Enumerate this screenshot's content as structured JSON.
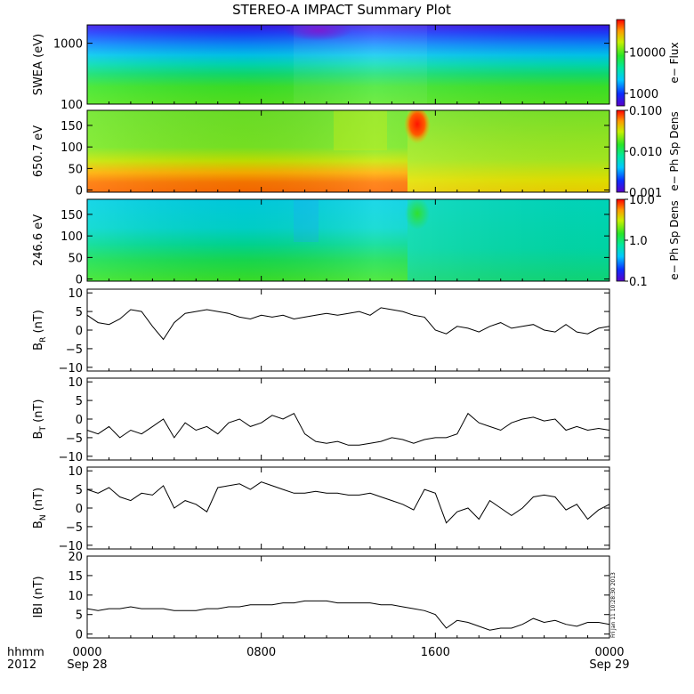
{
  "title": "STEREO-A IMPACT Summary Plot",
  "side_stamp": "Fri Jan 11 10:28:30 2013",
  "time_axis": {
    "corner_labels": [
      "hhmm",
      "2012"
    ],
    "ticks": [
      {
        "t": 0,
        "hhmm": "0000",
        "date": "Sep 28"
      },
      {
        "t": 8,
        "hhmm": "0800",
        "date": ""
      },
      {
        "t": 16,
        "hhmm": "1600",
        "date": ""
      },
      {
        "t": 24,
        "hhmm": "0000",
        "date": "Sep 29"
      }
    ]
  },
  "chart_data": [
    {
      "type": "heatmap",
      "ylabel": "SWEA (eV)",
      "y_scale": "log",
      "ylim": [
        100,
        2000
      ],
      "yticks": [
        {
          "v": 100,
          "label": "100"
        },
        {
          "v": 1000,
          "label": "1000"
        }
      ],
      "colorbar": {
        "label": "e− Flux",
        "scale": "log",
        "range": [
          500,
          60000
        ],
        "ticks": [
          {
            "v": 1000,
            "label": "1000"
          },
          {
            "v": 10000,
            "label": "10000"
          }
        ]
      }
    },
    {
      "type": "heatmap",
      "ylabel": "650.7 eV",
      "ylim": [
        -5,
        185
      ],
      "yticks": [
        {
          "v": 0,
          "label": "0"
        },
        {
          "v": 50,
          "label": "50"
        },
        {
          "v": 100,
          "label": "100"
        },
        {
          "v": 150,
          "label": "150"
        }
      ],
      "colorbar": {
        "label": "e− Ph Sp Dens",
        "scale": "log",
        "range": [
          0.001,
          0.1
        ],
        "ticks": [
          {
            "v": 0.001,
            "label": "0.001"
          },
          {
            "v": 0.01,
            "label": "0.010"
          },
          {
            "v": 0.1,
            "label": "0.100"
          }
        ]
      }
    },
    {
      "type": "heatmap",
      "ylabel": "246.6 eV",
      "ylim": [
        -5,
        185
      ],
      "yticks": [
        {
          "v": 0,
          "label": "0"
        },
        {
          "v": 50,
          "label": "50"
        },
        {
          "v": 100,
          "label": "100"
        },
        {
          "v": 150,
          "label": "150"
        }
      ],
      "colorbar": {
        "label": "e− Ph Sp Dens",
        "scale": "log",
        "range": [
          0.1,
          10
        ],
        "ticks": [
          {
            "v": 0.1,
            "label": "0.1"
          },
          {
            "v": 1,
            "label": "1.0"
          },
          {
            "v": 10,
            "label": "10.0"
          }
        ]
      }
    },
    {
      "type": "line",
      "name": "B_R",
      "ylabel": {
        "main": "B",
        "sub": "R",
        "unit": " (nT)"
      },
      "ylim": [
        -11,
        11
      ],
      "yticks": [
        {
          "v": -10,
          "label": "−10"
        },
        {
          "v": -5,
          "label": "−5"
        },
        {
          "v": 0,
          "label": "0"
        },
        {
          "v": 5,
          "label": "5"
        },
        {
          "v": 10,
          "label": "10"
        }
      ],
      "x": [
        0,
        0.5,
        1,
        1.5,
        2,
        2.5,
        3,
        3.5,
        4,
        4.5,
        5,
        5.5,
        6,
        6.5,
        7,
        7.5,
        8,
        8.5,
        9,
        9.5,
        10,
        10.5,
        11,
        11.5,
        12,
        12.5,
        13,
        13.5,
        14,
        14.5,
        15,
        15.5,
        16,
        16.5,
        17,
        17.5,
        18,
        18.5,
        19,
        19.5,
        20,
        20.5,
        21,
        21.5,
        22,
        22.5,
        23,
        23.5,
        24
      ],
      "y": [
        4,
        2,
        1.5,
        3,
        5.5,
        5,
        1,
        -2.5,
        2,
        4.5,
        5,
        5.5,
        5,
        4.5,
        3.5,
        3,
        4,
        3.5,
        4,
        3,
        3.5,
        4,
        4.5,
        4,
        4.5,
        5,
        4,
        6,
        5.5,
        5,
        4,
        3.5,
        0,
        -1,
        1,
        0.5,
        -0.5,
        1,
        2,
        0.5,
        1,
        1.5,
        0,
        -0.5,
        1.5,
        -0.5,
        -1,
        0.5,
        1
      ]
    },
    {
      "type": "line",
      "name": "B_T",
      "ylabel": {
        "main": "B",
        "sub": "T",
        "unit": " (nT)"
      },
      "ylim": [
        -11,
        11
      ],
      "yticks": [
        {
          "v": -10,
          "label": "−10"
        },
        {
          "v": -5,
          "label": "−5"
        },
        {
          "v": 0,
          "label": "0"
        },
        {
          "v": 5,
          "label": "5"
        },
        {
          "v": 10,
          "label": "10"
        }
      ],
      "x": [
        0,
        0.5,
        1,
        1.5,
        2,
        2.5,
        3,
        3.5,
        4,
        4.5,
        5,
        5.5,
        6,
        6.5,
        7,
        7.5,
        8,
        8.5,
        9,
        9.5,
        10,
        10.5,
        11,
        11.5,
        12,
        12.5,
        13,
        13.5,
        14,
        14.5,
        15,
        15.5,
        16,
        16.5,
        17,
        17.5,
        18,
        18.5,
        19,
        19.5,
        20,
        20.5,
        21,
        21.5,
        22,
        22.5,
        23,
        23.5,
        24
      ],
      "y": [
        -3,
        -4,
        -2,
        -5,
        -3,
        -4,
        -2,
        0,
        -5,
        -1,
        -3,
        -2,
        -4,
        -1,
        0,
        -2,
        -1,
        1,
        0,
        1.5,
        -4,
        -6,
        -6.5,
        -6,
        -7,
        -7,
        -6.5,
        -6,
        -5,
        -5.5,
        -6.5,
        -5.5,
        -5,
        -5,
        -4,
        1.5,
        -1,
        -2,
        -3,
        -1,
        0,
        0.5,
        -0.5,
        0,
        -3,
        -2,
        -3,
        -2.5,
        -3
      ]
    },
    {
      "type": "line",
      "name": "B_N",
      "ylabel": {
        "main": "B",
        "sub": "N",
        "unit": " (nT)"
      },
      "ylim": [
        -11,
        11
      ],
      "yticks": [
        {
          "v": -10,
          "label": "−10"
        },
        {
          "v": -5,
          "label": "−5"
        },
        {
          "v": 0,
          "label": "0"
        },
        {
          "v": 5,
          "label": "5"
        },
        {
          "v": 10,
          "label": "10"
        }
      ],
      "x": [
        0,
        0.5,
        1,
        1.5,
        2,
        2.5,
        3,
        3.5,
        4,
        4.5,
        5,
        5.5,
        6,
        6.5,
        7,
        7.5,
        8,
        8.5,
        9,
        9.5,
        10,
        10.5,
        11,
        11.5,
        12,
        12.5,
        13,
        13.5,
        14,
        14.5,
        15,
        15.5,
        16,
        16.5,
        17,
        17.5,
        18,
        18.5,
        19,
        19.5,
        20,
        20.5,
        21,
        21.5,
        22,
        22.5,
        23,
        23.5,
        24
      ],
      "y": [
        5,
        4,
        5.5,
        3,
        2,
        4,
        3.5,
        6,
        0,
        2,
        1,
        -1,
        5.5,
        6,
        6.5,
        5,
        7,
        6,
        5,
        4,
        4,
        4.5,
        4,
        4,
        3.5,
        3.5,
        4,
        3,
        2,
        1,
        -0.5,
        5,
        4,
        -4,
        -1,
        0,
        -3,
        2,
        0,
        -2,
        0,
        3,
        3.5,
        3,
        -0.5,
        1,
        -3,
        -0.5,
        1
      ]
    },
    {
      "type": "line",
      "name": "|B|",
      "ylabel": {
        "main": "IBI",
        "sub": "",
        "unit": " (nT)"
      },
      "ylim": [
        -1,
        20
      ],
      "yticks": [
        {
          "v": 0,
          "label": "0"
        },
        {
          "v": 5,
          "label": "5"
        },
        {
          "v": 10,
          "label": "10"
        },
        {
          "v": 15,
          "label": "15"
        },
        {
          "v": 20,
          "label": "20"
        }
      ],
      "x": [
        0,
        0.5,
        1,
        1.5,
        2,
        2.5,
        3,
        3.5,
        4,
        4.5,
        5,
        5.5,
        6,
        6.5,
        7,
        7.5,
        8,
        8.5,
        9,
        9.5,
        10,
        10.5,
        11,
        11.5,
        12,
        12.5,
        13,
        13.5,
        14,
        14.5,
        15,
        15.5,
        16,
        16.5,
        17,
        17.5,
        18,
        18.5,
        19,
        19.5,
        20,
        20.5,
        21,
        21.5,
        22,
        22.5,
        23,
        23.5,
        24
      ],
      "y": [
        6.5,
        6,
        6.5,
        6.5,
        7,
        6.5,
        6.5,
        6.5,
        6,
        6,
        6,
        6.5,
        6.5,
        7,
        7,
        7.5,
        7.5,
        7.5,
        8,
        8,
        8.5,
        8.5,
        8.5,
        8,
        8,
        8,
        8,
        7.5,
        7.5,
        7,
        6.5,
        6,
        5,
        1.5,
        3.5,
        3,
        2,
        1,
        1.5,
        1.5,
        2.5,
        4,
        3,
        3.5,
        2.5,
        2,
        3,
        3,
        2.5
      ]
    }
  ]
}
